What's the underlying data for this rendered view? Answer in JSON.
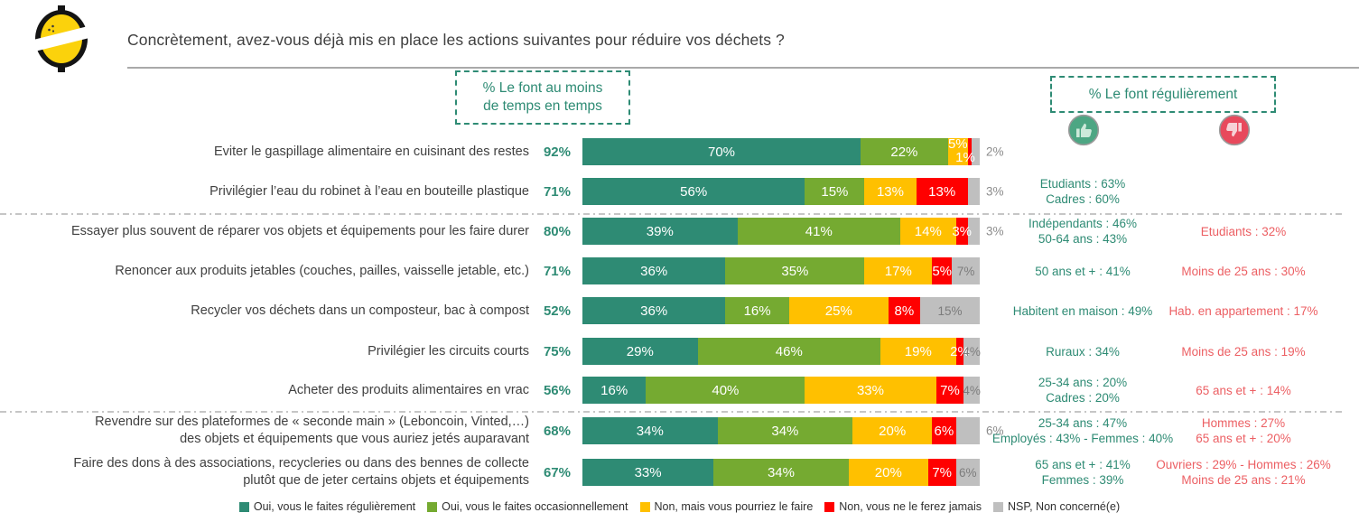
{
  "header": {
    "title": "Concrètement, avez-vous déjà mis en place les actions suivantes pour réduire vos déchets ?"
  },
  "column_headers": {
    "left_box_line1": "% Le font au moins",
    "left_box_line2": "de temps en temps",
    "right_box": "% Le font régulièrement"
  },
  "icons": {
    "logo": "lemon-logo",
    "positive": "thumb-up-icon",
    "negative": "thumb-down-icon"
  },
  "chart_data": {
    "type": "bar",
    "orientation": "horizontal-stacked",
    "unit": "%",
    "axis_range": [
      0,
      100
    ],
    "legend": [
      {
        "key": "oui-regulierement",
        "label": "Oui, vous le faites régulièrement",
        "color": "#2E8B74"
      },
      {
        "key": "oui-occasionnellement",
        "label": "Oui, vous le faites occasionnellement",
        "color": "#75AA31"
      },
      {
        "key": "non-pourriez",
        "label": "Non, mais vous pourriez le faire",
        "color": "#FFC000"
      },
      {
        "key": "non-jamais",
        "label": "Non, vous ne le ferez jamais",
        "color": "#FF0000"
      },
      {
        "key": "nsp",
        "label": "NSP, Non concerné(e)",
        "color": "#BFBFBF"
      }
    ],
    "rows": [
      {
        "label": [
          "Eviter le gaspillage alimentaire en cuisinant des restes"
        ],
        "total": "92%",
        "values": [
          70,
          22,
          5,
          1,
          2
        ],
        "nsp_label": "outside",
        "green_notes": [],
        "red_notes": []
      },
      {
        "label": [
          "Privilégier l’eau du robinet à l’eau en bouteille plastique"
        ],
        "total": "71%",
        "values": [
          56,
          15,
          13,
          13,
          3
        ],
        "nsp_label": "outside",
        "green_notes": [
          "Etudiants : 63%",
          "Cadres : 60%"
        ],
        "red_notes": []
      },
      {
        "label": [
          "Essayer plus souvent de réparer vos objets et équipements pour les faire durer"
        ],
        "total": "80%",
        "values": [
          39,
          41,
          14,
          3,
          3
        ],
        "nsp_label": "outside",
        "green_notes": [
          "Indépendants : 46%",
          "50-64 ans : 43%"
        ],
        "red_notes": [
          "Etudiants : 32%"
        ]
      },
      {
        "label": [
          "Renoncer aux produits jetables (couches, pailles, vaisselle jetable, etc.)"
        ],
        "total": "71%",
        "values": [
          36,
          35,
          17,
          5,
          7
        ],
        "nsp_label": "inside",
        "green_notes": [
          "50 ans et + : 41%"
        ],
        "red_notes": [
          "Moins de 25 ans : 30%"
        ]
      },
      {
        "label": [
          "Recycler vos déchets dans un composteur, bac à compost"
        ],
        "total": "52%",
        "values": [
          36,
          16,
          25,
          8,
          15
        ],
        "nsp_label": "inside",
        "green_notes": [
          "Habitent en maison : 49%"
        ],
        "red_notes": [
          "Hab. en appartement : 17%"
        ]
      },
      {
        "label": [
          "Privilégier les circuits courts"
        ],
        "total": "75%",
        "values": [
          29,
          46,
          19,
          2,
          4
        ],
        "nsp_label": "inside",
        "green_notes": [
          "Ruraux : 34%"
        ],
        "red_notes": [
          "Moins de 25 ans : 19%"
        ]
      },
      {
        "label": [
          "Acheter des produits alimentaires en vrac"
        ],
        "total": "56%",
        "values": [
          16,
          40,
          33,
          7,
          4
        ],
        "nsp_label": "inside",
        "green_notes": [
          "25-34 ans : 20%",
          "Cadres : 20%"
        ],
        "red_notes": [
          "65 ans et + : 14%"
        ]
      },
      {
        "label": [
          "Revendre sur des plateformes de « seconde main » (Leboncoin, Vinted,…)",
          "des objets et équipements que vous auriez jetés auparavant"
        ],
        "total": "68%",
        "values": [
          34,
          34,
          20,
          6,
          6
        ],
        "nsp_label": "outside",
        "green_notes": [
          "25-34 ans : 47%",
          "Employés : 43% - Femmes : 40%"
        ],
        "red_notes": [
          "Hommes : 27%",
          "65 ans et + : 20%"
        ]
      },
      {
        "label": [
          "Faire des dons à des associations, recycleries ou dans des bennes de collecte",
          "plutôt que de jeter certains objets et équipements"
        ],
        "total": "67%",
        "values": [
          33,
          34,
          20,
          7,
          6
        ],
        "nsp_label": "inside",
        "green_notes": [
          "65 ans et + : 41%",
          "Femmes : 39%"
        ],
        "red_notes": [
          "Ouvriers : 29% - Hommes : 26%",
          "Moins de 25 ans : 21%"
        ]
      }
    ],
    "colors": {
      "total_text": "#2E8B74",
      "green_note_text": "#2E8B74",
      "red_note_text": "#EC5F63",
      "nsp_label_text": "#8C8C8C",
      "title_text": "#3F3F3F"
    }
  }
}
